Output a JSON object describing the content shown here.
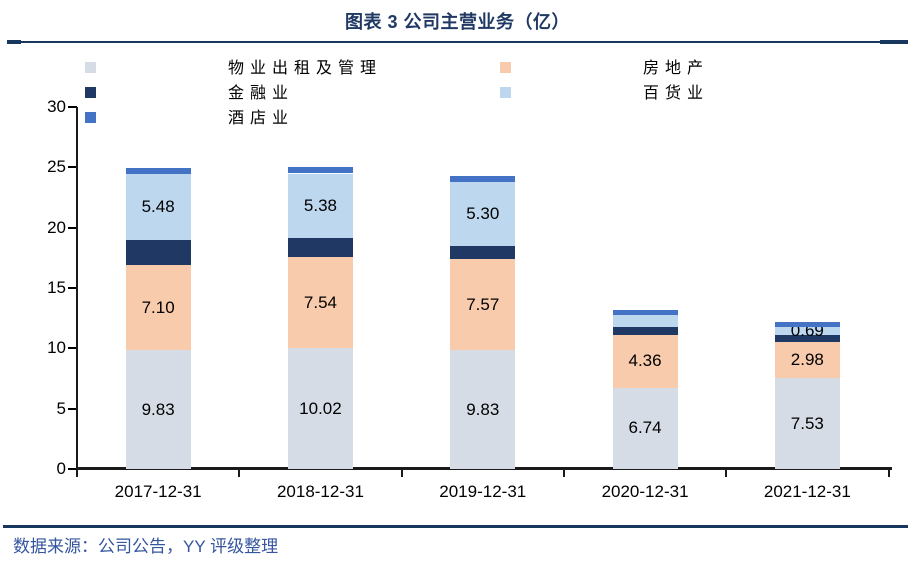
{
  "title": "图表 3 公司主营业务（亿）",
  "source_note": "数据来源：公司公告，YY 评级整理",
  "colors": {
    "rule_dark_navy": "#17375E",
    "title_text": "#1F3864",
    "source_text": "#35559F",
    "axis_line": "#1a1a1a",
    "data_label": "#000000"
  },
  "chart_data": {
    "type": "bar",
    "stacked": true,
    "title": "图表 3 公司主营业务（亿）",
    "xlabel": "",
    "ylabel": "",
    "ylim": [
      0,
      30
    ],
    "yticks": [
      0,
      5,
      10,
      15,
      20,
      25,
      30
    ],
    "grid": false,
    "legend_position": "top-left, two columns",
    "categories": [
      "2017-12-31",
      "2018-12-31",
      "2019-12-31",
      "2020-12-31",
      "2021-12-31"
    ],
    "series": [
      {
        "name": "物业出租及管理",
        "color": "#D6DCE5",
        "values": [
          9.83,
          10.02,
          9.83,
          6.74,
          7.53
        ],
        "labels": [
          "9.83",
          "10.02",
          "9.83",
          "6.74",
          "7.53"
        ]
      },
      {
        "name": "房地产",
        "color": "#F8CBAD",
        "values": [
          7.1,
          7.54,
          7.57,
          4.36,
          2.98
        ],
        "labels": [
          "7.10",
          "7.54",
          "7.57",
          "4.36",
          "2.98"
        ]
      },
      {
        "name": "金融业",
        "color": "#1F3864",
        "values": [
          2.05,
          1.55,
          1.1,
          0.7,
          0.6
        ],
        "labels": [
          null,
          null,
          null,
          null,
          null
        ],
        "values_estimated": true
      },
      {
        "name": "百货业",
        "color": "#BDD7EE",
        "values": [
          5.48,
          5.38,
          5.3,
          0.95,
          0.69
        ],
        "labels": [
          "5.48",
          "5.38",
          "5.30",
          null,
          "0.69"
        ]
      },
      {
        "name": "酒店业",
        "color": "#4472C4",
        "values": [
          0.5,
          0.55,
          0.45,
          0.45,
          0.35
        ],
        "labels": [
          null,
          null,
          null,
          null,
          null
        ],
        "values_estimated": true
      }
    ]
  }
}
